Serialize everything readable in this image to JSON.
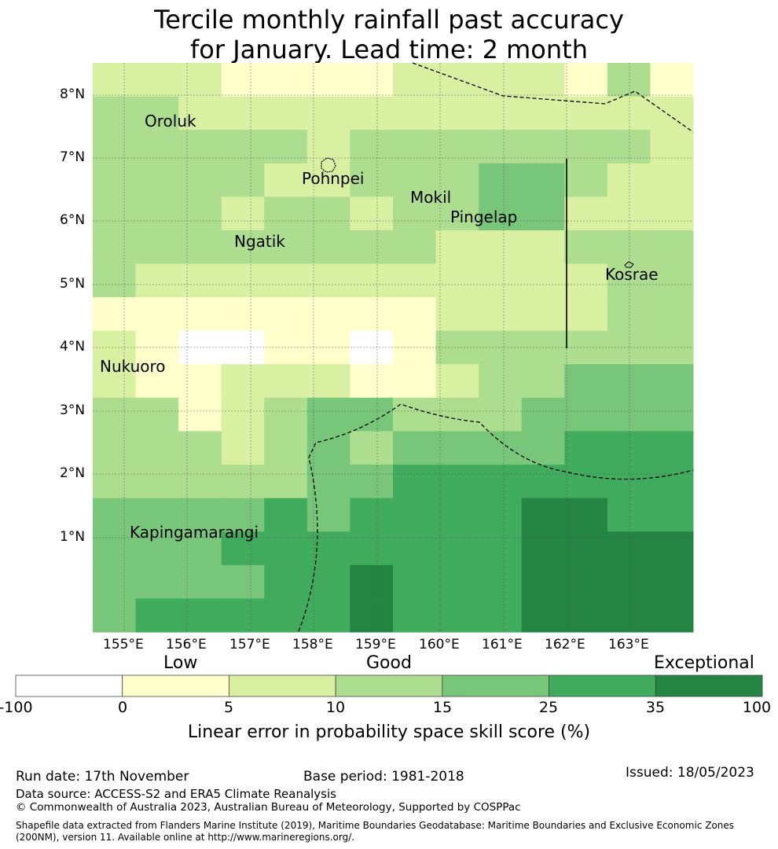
{
  "title": {
    "line1": "Tercile monthly rainfall past accuracy",
    "line2": "for January. Lead time: 2 month"
  },
  "map": {
    "lon_labels": [
      "155°E",
      "156°E",
      "157°E",
      "158°E",
      "159°E",
      "160°E",
      "161°E",
      "162°E",
      "163°E"
    ],
    "lat_labels": [
      "8°N",
      "7°N",
      "6°N",
      "5°N",
      "4°N",
      "3°N",
      "2°N",
      "1°N"
    ],
    "places": [
      "Oroluk",
      "Pohnpei",
      "Mokil",
      "Pingelap",
      "Ngatik",
      "Kosrae",
      "Nukuoro",
      "Kapingamarangi"
    ],
    "grid_levels": [
      [
        2,
        2,
        2,
        1,
        1,
        1,
        1,
        2,
        2,
        2,
        2,
        1,
        3,
        1
      ],
      [
        3,
        3,
        2,
        2,
        2,
        2,
        2,
        2,
        2,
        2,
        2,
        2,
        2,
        2
      ],
      [
        3,
        3,
        3,
        3,
        3,
        2,
        3,
        3,
        3,
        3,
        3,
        3,
        3,
        2
      ],
      [
        3,
        3,
        3,
        3,
        2,
        2,
        3,
        3,
        3,
        4,
        4,
        3,
        2,
        2
      ],
      [
        3,
        3,
        3,
        2,
        3,
        3,
        2,
        3,
        3,
        4,
        4,
        2,
        2,
        2
      ],
      [
        3,
        3,
        3,
        3,
        3,
        3,
        3,
        3,
        2,
        2,
        2,
        3,
        3,
        3
      ],
      [
        3,
        2,
        2,
        2,
        2,
        2,
        2,
        2,
        2,
        2,
        2,
        2,
        3,
        3
      ],
      [
        1,
        1,
        1,
        1,
        1,
        1,
        1,
        1,
        2,
        2,
        2,
        2,
        3,
        3
      ],
      [
        2,
        1,
        0,
        0,
        1,
        1,
        0,
        1,
        3,
        3,
        3,
        3,
        3,
        3
      ],
      [
        2,
        1,
        1,
        2,
        2,
        2,
        1,
        1,
        2,
        3,
        3,
        4,
        4,
        4
      ],
      [
        3,
        3,
        1,
        2,
        3,
        4,
        4,
        3,
        3,
        3,
        4,
        4,
        4,
        4
      ],
      [
        3,
        3,
        3,
        2,
        3,
        4,
        3,
        4,
        4,
        4,
        4,
        5,
        5,
        5
      ],
      [
        3,
        3,
        3,
        3,
        3,
        4,
        4,
        5,
        5,
        5,
        5,
        5,
        5,
        5
      ],
      [
        4,
        4,
        4,
        4,
        5,
        4,
        5,
        5,
        5,
        5,
        6,
        6,
        5,
        5
      ],
      [
        4,
        4,
        4,
        5,
        5,
        5,
        5,
        5,
        5,
        5,
        6,
        6,
        6,
        6
      ],
      [
        4,
        4,
        4,
        4,
        5,
        5,
        6,
        5,
        5,
        5,
        6,
        6,
        6,
        6
      ],
      [
        4,
        5,
        5,
        5,
        5,
        5,
        6,
        5,
        5,
        5,
        6,
        6,
        6,
        6
      ]
    ]
  },
  "colorbar": {
    "categories": [
      "Low",
      "Good",
      "Exceptional"
    ],
    "colors": [
      "#ffffff",
      "#ffffcc",
      "#d9f0a3",
      "#addd8e",
      "#78c679",
      "#41ab5d",
      "#238443"
    ],
    "ticks": [
      "-100",
      "0",
      "5",
      "10",
      "15",
      "25",
      "35",
      "100"
    ],
    "label": "Linear error in probability space skill score (%)"
  },
  "footer": {
    "run_date": "Run date: 17th November",
    "base_period": "Base period: 1981-2018",
    "issued": "Issued: 18/05/2023",
    "data_source": "Data source: ACCESS-S2 and ERA5 Climate Reanalysis",
    "copyright": "© Commonwealth of Australia 2023, Australian Bureau of Meteorology, Supported by COSPPac",
    "shapefile_line1": "Shapefile data extracted from Flanders Marine Institute (2019), Maritime Boundaries Geodatabase: Maritime Boundaries and Exclusive Economic Zones",
    "shapefile_line2": "(200NM), version 11. Available online at http://www.marineregions.org/."
  }
}
